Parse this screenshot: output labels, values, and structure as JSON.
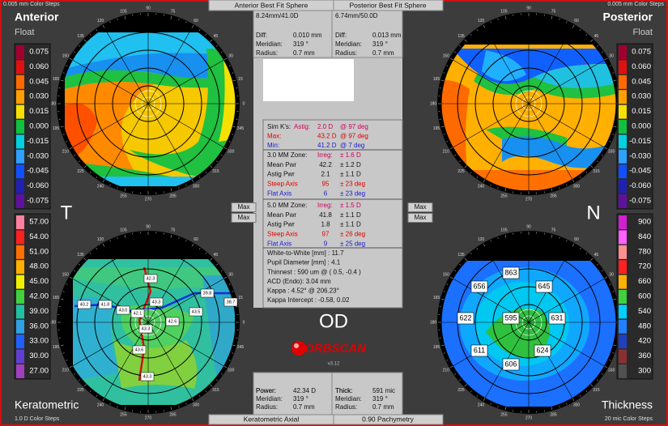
{
  "quadrants": {
    "top_left": {
      "title": "Anterior",
      "subtitle": "Float",
      "steps": "0.005 mm Color Steps"
    },
    "top_right": {
      "title": "Posterior",
      "subtitle": "Float",
      "steps": "0.005 mm Color Steps"
    },
    "bottom_left": {
      "title": "Keratometric",
      "steps": "1.0 D Color Steps"
    },
    "bottom_right": {
      "title": "Thickness",
      "steps": "20 mic Color Steps"
    }
  },
  "tabs": {
    "top": [
      "Anterior Best Fit Sphere",
      "Posterior Best Fit Sphere"
    ],
    "bottom": [
      "Keratometric Axial",
      "0.90 Pachymetry"
    ]
  },
  "scales": {
    "float": {
      "labels": [
        "0.075",
        "0.060",
        "0.045",
        "0.030",
        "0.015",
        "0.000",
        "-0.015",
        "-0.030",
        "-0.045",
        "-0.060",
        "-0.075"
      ],
      "colors": [
        "#a00030",
        "#e01010",
        "#ff6a00",
        "#ffa000",
        "#f5e000",
        "#10c040",
        "#00d0e0",
        "#30a0ff",
        "#1050ff",
        "#2020b0",
        "#6010a0"
      ]
    },
    "keratometric": {
      "labels": [
        "57.00",
        "54.00",
        "51.00",
        "48.00",
        "45.00",
        "42.00",
        "39.00",
        "36.00",
        "33.00",
        "30.00",
        "27.00"
      ],
      "colors": [
        "#ff80a0",
        "#ff2020",
        "#ff7000",
        "#ffb000",
        "#f0f000",
        "#40d040",
        "#20c0a0",
        "#30a0e0",
        "#2060ff",
        "#6040d0",
        "#a040c0"
      ]
    },
    "thickness": {
      "labels": [
        "900",
        "840",
        "780",
        "720",
        "660",
        "600",
        "540",
        "480",
        "420",
        "360",
        "300"
      ],
      "colors": [
        "#d020d0",
        "#ff60ff",
        "#ff9090",
        "#ff2020",
        "#ffb000",
        "#40d040",
        "#00d0ff",
        "#2080ff",
        "#2040c0",
        "#8a3030",
        "#505050"
      ]
    }
  },
  "dial_labels": [
    "0",
    "15",
    "30",
    "45",
    "60",
    "75",
    "90",
    "105",
    "120",
    "135",
    "150",
    "165",
    "180",
    "195",
    "210",
    "225",
    "240",
    "255",
    "270",
    "285",
    "300",
    "315",
    "330",
    "345"
  ],
  "best_fit": [
    {
      "header": "8.24mm/41.0D",
      "rows": [
        [
          "Diff:",
          "0.010 mm"
        ],
        [
          "Meridian:",
          "319 °"
        ],
        [
          "Radius:",
          "0.7 mm"
        ]
      ]
    },
    {
      "header": "6.74mm/50.0D",
      "rows": [
        [
          "Diff:",
          "0.013 mm"
        ],
        [
          "Meridian:",
          "319 °"
        ],
        [
          "Radius:",
          "0.7 mm"
        ]
      ]
    }
  ],
  "cursor": [
    {
      "rows": [
        [
          "Power:",
          "42.34 D"
        ],
        [
          "Meridian:",
          "319 °"
        ],
        [
          "Radius:",
          "0.7 mm"
        ]
      ]
    },
    {
      "rows": [
        [
          "Thick:",
          "591 mic"
        ],
        [
          "Meridian:",
          "319 °"
        ],
        [
          "Radius:",
          "0.7 mm"
        ]
      ]
    }
  ],
  "sim_k": {
    "title": "Sim K's:",
    "rows": [
      {
        "label": "Astig:",
        "value": "2.0 D",
        "axis": "@ 97 deg",
        "color": "#d0005a"
      },
      {
        "label": "Max:",
        "value": "43.2 D",
        "axis": "@ 97 deg",
        "color": "#e00000"
      },
      {
        "label": "Min:",
        "value": "41.2 D",
        "axis": "@ 7 deg",
        "color": "#1a1ad0"
      }
    ]
  },
  "zones": [
    {
      "title": "3.0 MM Zone:",
      "irreg": {
        "label": "Irreg:",
        "sd": "± 1.6 D",
        "color": "#d0005a"
      },
      "rows": [
        {
          "label": "Mean Pwr",
          "value": "42.2",
          "sd": "± 1.2 D"
        },
        {
          "label": "Astig Pwr",
          "value": "2.1",
          "sd": "± 1.1 D"
        },
        {
          "label": "Steep Axis",
          "value": "95",
          "sd": "± 23 deg",
          "color": "#e00000"
        },
        {
          "label": "Flat Axis",
          "value": "6",
          "sd": "± 23 deg",
          "color": "#1a1ad0"
        }
      ]
    },
    {
      "title": "5.0 MM Zone:",
      "irreg": {
        "label": "Irreg:",
        "sd": "± 1.5 D",
        "color": "#d0005a"
      },
      "rows": [
        {
          "label": "Mean Pwr",
          "value": "41.8",
          "sd": "± 1.1 D"
        },
        {
          "label": "Astig Pwr",
          "value": "1.8",
          "sd": "± 1.1 D"
        },
        {
          "label": "Steep Axis",
          "value": "97",
          "sd": "± 26 deg",
          "color": "#e00000"
        },
        {
          "label": "Flat Axis",
          "value": "9",
          "sd": "± 25 deg",
          "color": "#1a1ad0"
        }
      ]
    }
  ],
  "measurements": [
    "White-to-White [mm] : 11.7",
    "Pupil Diameter [mm] : 4.1",
    "Thinnest : 590 um @ ( 0.5, -0.4 )",
    "ACD (Endo): 3.04 mm",
    "Kappa : 4.52° @ 206.23°",
    "Kappa Intercept : -0.58, 0.02"
  ],
  "max_button": "Max",
  "side_letters": [
    "T",
    "N"
  ],
  "eye": "OD",
  "brand": "ORBSCAN",
  "version": "v3.12",
  "keratometric_labels": [
    "42.3",
    "40.2",
    "41.8",
    "43.0",
    "42.1",
    "43.3",
    "42.6",
    "43.5",
    "39.8",
    "38.7",
    "43.6",
    "43.3",
    "43.3"
  ],
  "thickness_labels": [
    "863",
    "656",
    "645",
    "622",
    "595",
    "631",
    "611",
    "624",
    "606"
  ]
}
